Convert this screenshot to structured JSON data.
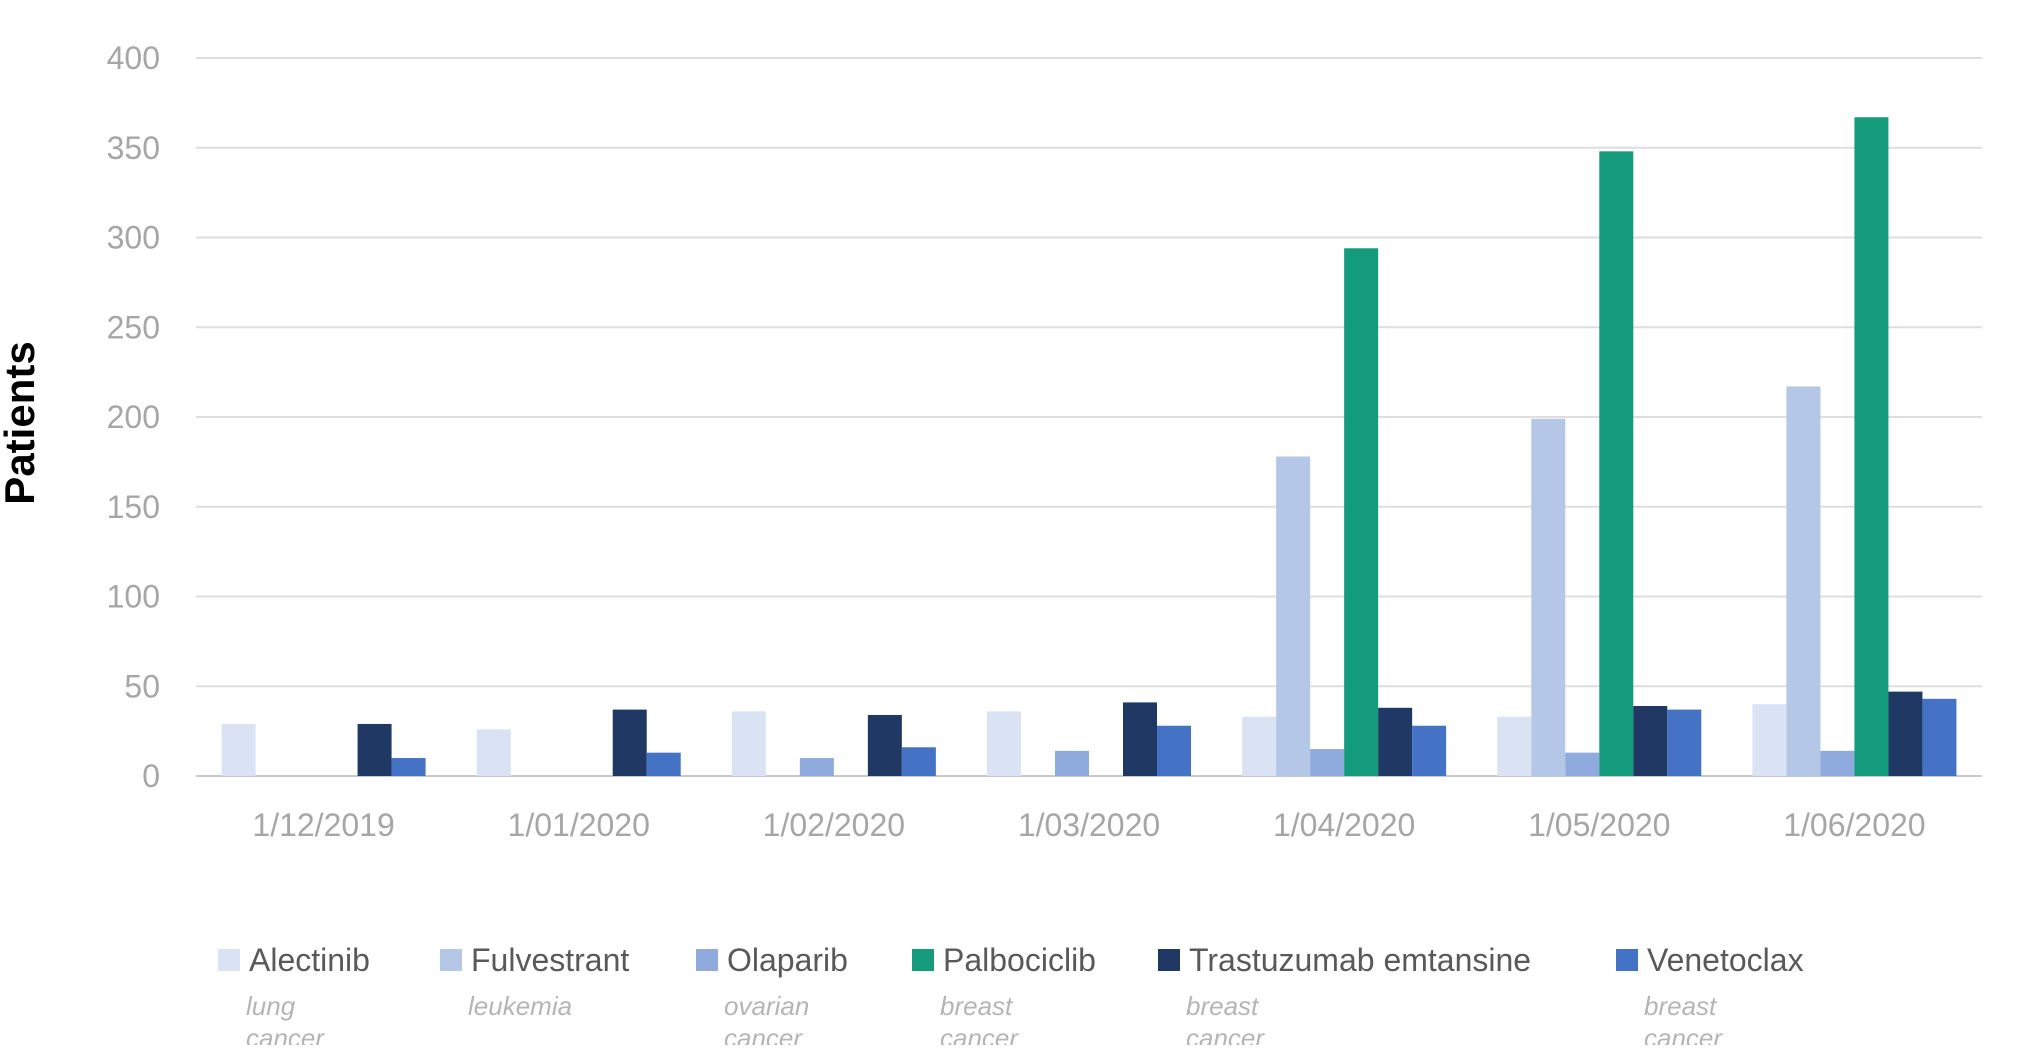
{
  "chart_data": {
    "type": "bar",
    "title": "",
    "xlabel": "",
    "ylabel": "Patients",
    "ylim": [
      0,
      400
    ],
    "yticks": [
      0,
      50,
      100,
      150,
      200,
      250,
      300,
      350,
      400
    ],
    "grid": true,
    "legend_position": "bottom",
    "categories": [
      "1/12/2019",
      "1/01/2020",
      "1/02/2020",
      "1/03/2020",
      "1/04/2020",
      "1/05/2020",
      "1/06/2020"
    ],
    "series": [
      {
        "name": "Alectinib",
        "subtitle": "lung cancer",
        "color": "#dae3f3",
        "values": [
          29,
          26,
          36,
          36,
          33,
          33,
          40
        ]
      },
      {
        "name": "Fulvestrant",
        "subtitle": "leukemia",
        "color": "#b4c7e7",
        "values": [
          0,
          0,
          0,
          0,
          178,
          199,
          217
        ]
      },
      {
        "name": "Olaparib",
        "subtitle": "ovarian cancer",
        "color": "#8faadc",
        "values": [
          0,
          0,
          10,
          14,
          15,
          13,
          14
        ]
      },
      {
        "name": "Palbociclib",
        "subtitle": "breast cancer",
        "color": "#149b7b",
        "values": [
          0,
          0,
          0,
          0,
          294,
          348,
          367
        ]
      },
      {
        "name": "Trastuzumab emtansine",
        "subtitle": "breast cancer",
        "color": "#203864",
        "values": [
          29,
          37,
          34,
          41,
          38,
          39,
          47
        ]
      },
      {
        "name": "Venetoclax",
        "subtitle": "breast cancer",
        "color": "#4472c4",
        "values": [
          10,
          13,
          16,
          28,
          28,
          37,
          43
        ]
      }
    ]
  }
}
